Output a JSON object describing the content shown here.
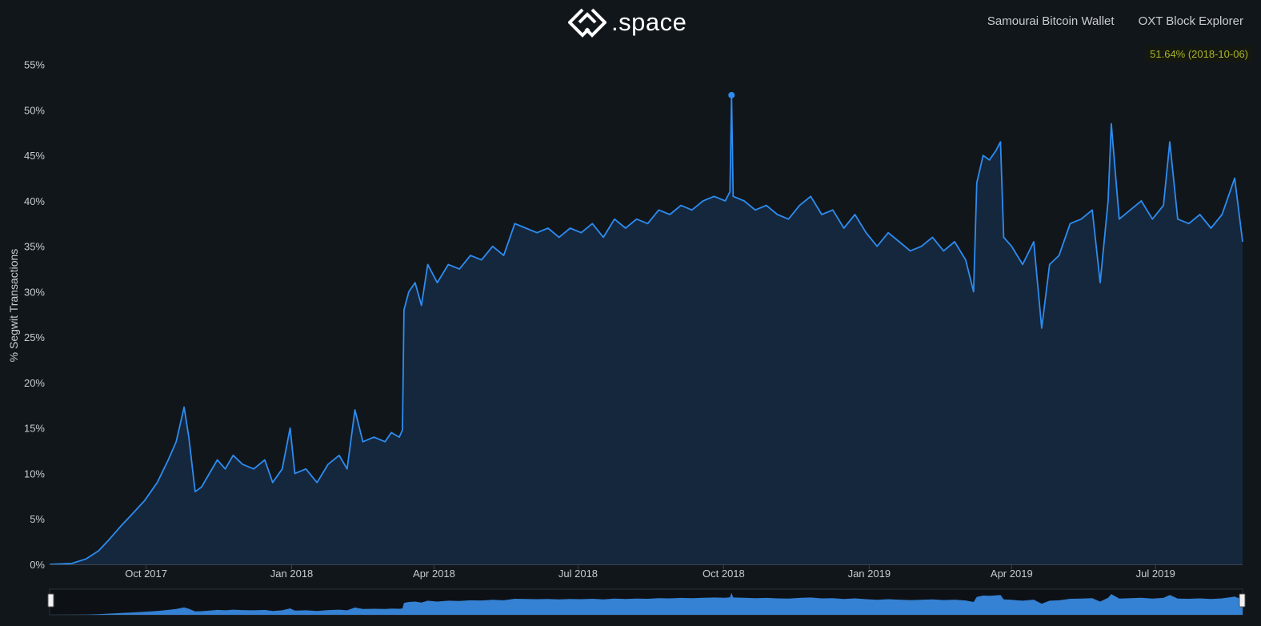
{
  "header": {
    "logo_text": ".space",
    "nav": [
      {
        "label": "Samourai Bitcoin Wallet"
      },
      {
        "label": "OXT Block Explorer"
      }
    ]
  },
  "readout": {
    "text": "51.64% (2018-10-06)",
    "value": 51.64,
    "date": "2018-10-06"
  },
  "colors": {
    "background": "#11161b",
    "line": "#2d8cf0",
    "area": "#15273d",
    "readout_text": "#a8b22e",
    "navigator_fill": "#3a8ee8"
  },
  "chart_data": {
    "type": "area",
    "xlabel": "",
    "ylabel": "% Segwit Transactions",
    "ylim": [
      0,
      57
    ],
    "y_ticks": [
      0,
      5,
      10,
      15,
      20,
      25,
      30,
      35,
      40,
      45,
      50,
      55
    ],
    "y_tick_labels": [
      "0%",
      "5%",
      "10%",
      "15%",
      "20%",
      "25%",
      "30%",
      "35%",
      "40%",
      "45%",
      "50%",
      "55%"
    ],
    "x_range": [
      "2017-08-01",
      "2019-08-25"
    ],
    "x_ticks": [
      {
        "date": "2017-10-01",
        "label": "Oct 2017"
      },
      {
        "date": "2018-01-01",
        "label": "Jan 2018"
      },
      {
        "date": "2018-04-01",
        "label": "Apr 2018"
      },
      {
        "date": "2018-07-01",
        "label": "Jul 2018"
      },
      {
        "date": "2018-10-01",
        "label": "Oct 2018"
      },
      {
        "date": "2019-01-01",
        "label": "Jan 2019"
      },
      {
        "date": "2019-04-01",
        "label": "Apr 2019"
      },
      {
        "date": "2019-07-01",
        "label": "Jul 2019"
      }
    ],
    "highlight": {
      "date": "2018-10-06",
      "value": 51.64
    },
    "series": [
      {
        "points": [
          [
            "2017-08-01",
            0.0
          ],
          [
            "2017-08-15",
            0.1
          ],
          [
            "2017-08-24",
            0.6
          ],
          [
            "2017-09-01",
            1.5
          ],
          [
            "2017-09-08",
            2.8
          ],
          [
            "2017-09-15",
            4.2
          ],
          [
            "2017-09-22",
            5.5
          ],
          [
            "2017-09-30",
            7.0
          ],
          [
            "2017-10-08",
            9.0
          ],
          [
            "2017-10-15",
            11.5
          ],
          [
            "2017-10-20",
            13.5
          ],
          [
            "2017-10-25",
            17.3
          ],
          [
            "2017-10-28",
            14.0
          ],
          [
            "2017-11-01",
            8.0
          ],
          [
            "2017-11-05",
            8.5
          ],
          [
            "2017-11-10",
            10.0
          ],
          [
            "2017-11-15",
            11.5
          ],
          [
            "2017-11-20",
            10.5
          ],
          [
            "2017-11-25",
            12.0
          ],
          [
            "2017-12-01",
            11.0
          ],
          [
            "2017-12-08",
            10.5
          ],
          [
            "2017-12-15",
            11.5
          ],
          [
            "2017-12-20",
            9.0
          ],
          [
            "2017-12-26",
            10.5
          ],
          [
            "2017-12-31",
            15.0
          ],
          [
            "2018-01-03",
            10.0
          ],
          [
            "2018-01-10",
            10.5
          ],
          [
            "2018-01-17",
            9.0
          ],
          [
            "2018-01-24",
            11.0
          ],
          [
            "2018-01-31",
            12.0
          ],
          [
            "2018-02-05",
            10.5
          ],
          [
            "2018-02-10",
            17.0
          ],
          [
            "2018-02-15",
            13.5
          ],
          [
            "2018-02-22",
            14.0
          ],
          [
            "2018-03-01",
            13.5
          ],
          [
            "2018-03-05",
            14.5
          ],
          [
            "2018-03-10",
            14.0
          ],
          [
            "2018-03-12",
            14.8
          ],
          [
            "2018-03-13",
            28.0
          ],
          [
            "2018-03-16",
            30.0
          ],
          [
            "2018-03-20",
            31.0
          ],
          [
            "2018-03-24",
            28.5
          ],
          [
            "2018-03-28",
            33.0
          ],
          [
            "2018-04-03",
            31.0
          ],
          [
            "2018-04-10",
            33.0
          ],
          [
            "2018-04-17",
            32.5
          ],
          [
            "2018-04-24",
            34.0
          ],
          [
            "2018-05-01",
            33.5
          ],
          [
            "2018-05-08",
            35.0
          ],
          [
            "2018-05-15",
            34.0
          ],
          [
            "2018-05-22",
            37.5
          ],
          [
            "2018-05-29",
            37.0
          ],
          [
            "2018-06-05",
            36.5
          ],
          [
            "2018-06-12",
            37.0
          ],
          [
            "2018-06-19",
            36.0
          ],
          [
            "2018-06-26",
            37.0
          ],
          [
            "2018-07-03",
            36.5
          ],
          [
            "2018-07-10",
            37.5
          ],
          [
            "2018-07-17",
            36.0
          ],
          [
            "2018-07-24",
            38.0
          ],
          [
            "2018-07-31",
            37.0
          ],
          [
            "2018-08-07",
            38.0
          ],
          [
            "2018-08-14",
            37.5
          ],
          [
            "2018-08-21",
            39.0
          ],
          [
            "2018-08-28",
            38.5
          ],
          [
            "2018-09-04",
            39.5
          ],
          [
            "2018-09-11",
            39.0
          ],
          [
            "2018-09-18",
            40.0
          ],
          [
            "2018-09-25",
            40.5
          ],
          [
            "2018-10-02",
            40.0
          ],
          [
            "2018-10-05",
            41.0
          ],
          [
            "2018-10-06",
            51.64
          ],
          [
            "2018-10-07",
            40.5
          ],
          [
            "2018-10-14",
            40.0
          ],
          [
            "2018-10-21",
            39.0
          ],
          [
            "2018-10-28",
            39.5
          ],
          [
            "2018-11-04",
            38.5
          ],
          [
            "2018-11-11",
            38.0
          ],
          [
            "2018-11-18",
            39.5
          ],
          [
            "2018-11-25",
            40.5
          ],
          [
            "2018-12-02",
            38.5
          ],
          [
            "2018-12-09",
            39.0
          ],
          [
            "2018-12-16",
            37.0
          ],
          [
            "2018-12-23",
            38.5
          ],
          [
            "2018-12-30",
            36.5
          ],
          [
            "2019-01-06",
            35.0
          ],
          [
            "2019-01-13",
            36.5
          ],
          [
            "2019-01-20",
            35.5
          ],
          [
            "2019-01-27",
            34.5
          ],
          [
            "2019-02-03",
            35.0
          ],
          [
            "2019-02-10",
            36.0
          ],
          [
            "2019-02-17",
            34.5
          ],
          [
            "2019-02-24",
            35.5
          ],
          [
            "2019-03-03",
            33.5
          ],
          [
            "2019-03-08",
            30.0
          ],
          [
            "2019-03-10",
            42.0
          ],
          [
            "2019-03-14",
            45.0
          ],
          [
            "2019-03-18",
            44.5
          ],
          [
            "2019-03-22",
            45.5
          ],
          [
            "2019-03-25",
            46.5
          ],
          [
            "2019-03-27",
            36.0
          ],
          [
            "2019-04-01",
            35.0
          ],
          [
            "2019-04-08",
            33.0
          ],
          [
            "2019-04-15",
            35.5
          ],
          [
            "2019-04-20",
            26.0
          ],
          [
            "2019-04-25",
            33.0
          ],
          [
            "2019-05-01",
            34.0
          ],
          [
            "2019-05-08",
            37.5
          ],
          [
            "2019-05-15",
            38.0
          ],
          [
            "2019-05-22",
            39.0
          ],
          [
            "2019-05-27",
            31.0
          ],
          [
            "2019-06-01",
            40.0
          ],
          [
            "2019-06-03",
            48.5
          ],
          [
            "2019-06-08",
            38.0
          ],
          [
            "2019-06-15",
            39.0
          ],
          [
            "2019-06-22",
            40.0
          ],
          [
            "2019-06-29",
            38.0
          ],
          [
            "2019-07-06",
            39.5
          ],
          [
            "2019-07-10",
            46.5
          ],
          [
            "2019-07-15",
            38.0
          ],
          [
            "2019-07-22",
            37.5
          ],
          [
            "2019-07-29",
            38.5
          ],
          [
            "2019-08-05",
            37.0
          ],
          [
            "2019-08-12",
            38.5
          ],
          [
            "2019-08-20",
            42.5
          ],
          [
            "2019-08-25",
            35.5
          ]
        ]
      }
    ]
  }
}
